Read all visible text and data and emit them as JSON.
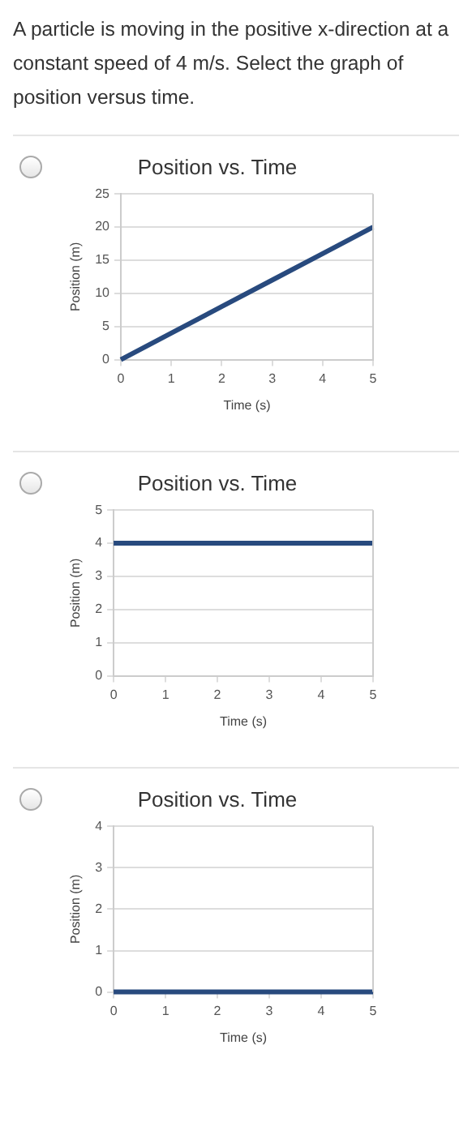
{
  "chart_data": [
    {
      "type": "other",
      "title": "A particle is moving in the positive x-direction at a constant speed of 4 m/s. Select the graph of position versus time."
    },
    {
      "type": "line",
      "title": "Position vs. Time",
      "xlabel": "Time (s)",
      "ylabel": "Position (m)",
      "x": [
        0,
        1,
        2,
        3,
        4,
        5
      ],
      "xlim": [
        0,
        5
      ],
      "xticks": [
        0,
        1,
        2,
        3,
        4,
        5
      ],
      "ylim": [
        0,
        25
      ],
      "yticks": [
        0,
        5,
        10,
        15,
        20,
        25
      ],
      "grid": "y",
      "legend": false,
      "marker": "none",
      "line_style": "solid",
      "series": [
        {
          "color": "#284a7e",
          "values": [
            0,
            4,
            8,
            12,
            16,
            20
          ]
        }
      ]
    },
    {
      "type": "line",
      "title": "Position vs. Time",
      "xlabel": "Time (s)",
      "ylabel": "Position (m)",
      "x": [
        0,
        1,
        2,
        3,
        4,
        5
      ],
      "xlim": [
        0,
        5
      ],
      "xticks": [
        0,
        1,
        2,
        3,
        4,
        5
      ],
      "ylim": [
        0,
        5
      ],
      "yticks": [
        0,
        1,
        2,
        3,
        4,
        5
      ],
      "grid": "y",
      "legend": false,
      "marker": "none",
      "line_style": "solid",
      "series": [
        {
          "color": "#284a7e",
          "values": [
            4,
            4,
            4,
            4,
            4,
            4
          ]
        }
      ]
    },
    {
      "type": "line",
      "title": "Position vs. Time",
      "xlabel": "Time (s)",
      "ylabel": "Position (m)",
      "x": [
        0,
        1,
        2,
        3,
        4,
        5
      ],
      "xlim": [
        0,
        5
      ],
      "xticks": [
        0,
        1,
        2,
        3,
        4,
        5
      ],
      "ylim": [
        0,
        4
      ],
      "yticks": [
        0,
        1,
        2,
        3,
        4
      ],
      "grid": "y",
      "legend": false,
      "marker": "none",
      "line_style": "solid",
      "series": [
        {
          "color": "#284a7e",
          "values": [
            0,
            0,
            0,
            0,
            0,
            0
          ]
        }
      ]
    }
  ]
}
